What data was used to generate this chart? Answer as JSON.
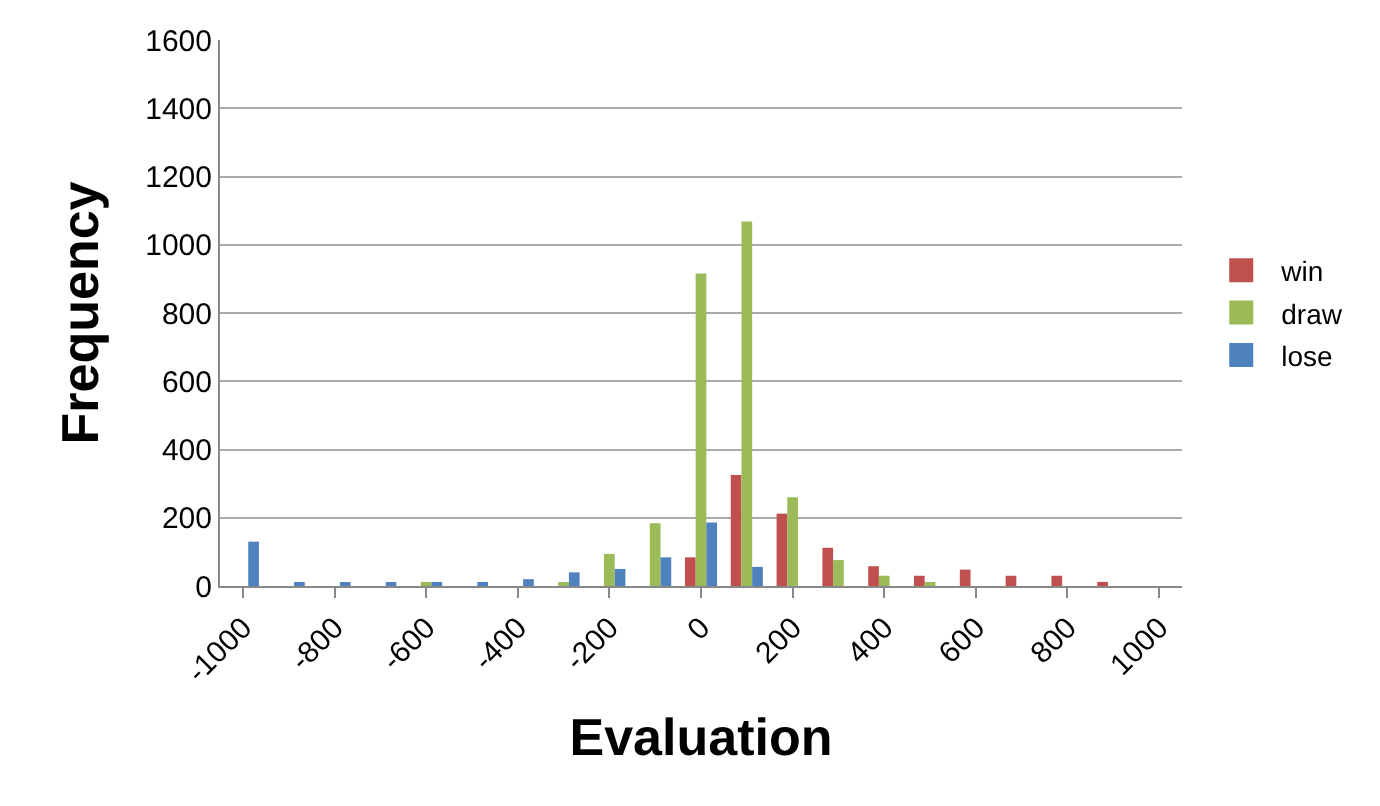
{
  "chart_data": {
    "type": "bar",
    "xlabel": "Evaluation",
    "ylabel": "Frequency",
    "categories": [
      "-1000",
      null,
      "-800",
      null,
      "-600",
      null,
      "-400",
      null,
      "-200",
      null,
      "0",
      null,
      "200",
      null,
      "400",
      null,
      "600",
      null,
      "800",
      null,
      "1000"
    ],
    "series": [
      {
        "name": "win",
        "color": "#c0504d",
        "values": [
          0,
          0,
          0,
          0,
          0,
          0,
          0,
          0,
          0,
          0,
          84,
          325,
          212,
          112,
          58,
          30,
          48,
          30,
          30,
          12,
          0
        ]
      },
      {
        "name": "draw",
        "color": "#9bbb59",
        "values": [
          0,
          0,
          0,
          0,
          10,
          0,
          0,
          10,
          94,
          184,
          916,
          1068,
          260,
          76,
          30,
          8,
          0,
          0,
          0,
          0,
          0
        ]
      },
      {
        "name": "lose",
        "color": "#4f81bd",
        "values": [
          130,
          10,
          10,
          10,
          10,
          10,
          20,
          40,
          50,
          84,
          186,
          56,
          0,
          0,
          0,
          0,
          0,
          0,
          0,
          0,
          0
        ]
      }
    ],
    "ylim": [
      0,
      1600
    ],
    "yticks": [
      0,
      200,
      400,
      600,
      800,
      1000,
      1200,
      1400,
      1600
    ],
    "grid": "y",
    "legend": "right"
  }
}
